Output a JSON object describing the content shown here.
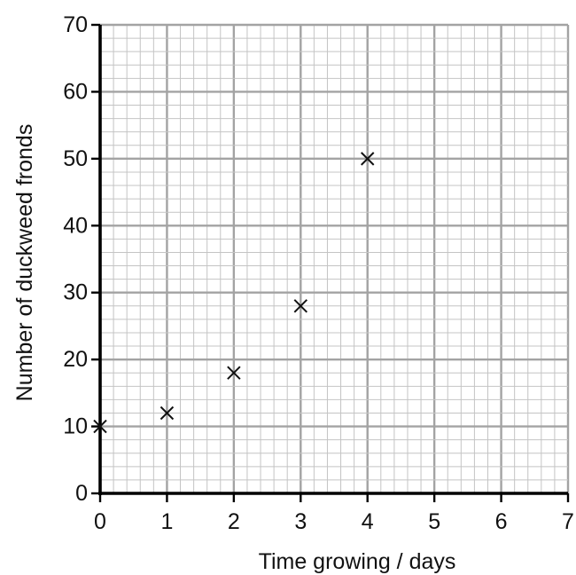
{
  "chart_data": {
    "type": "scatter",
    "title": "",
    "xlabel": "Time growing / days",
    "ylabel": "Number of duckweed fronds",
    "xlim": [
      0,
      7
    ],
    "ylim": [
      0,
      70
    ],
    "x_ticks": [
      "0",
      "1",
      "2",
      "3",
      "4",
      "5",
      "6",
      "7"
    ],
    "y_ticks": [
      "0",
      "10",
      "20",
      "30",
      "40",
      "50",
      "60",
      "70"
    ],
    "grid": true,
    "marker": "cross",
    "series": [
      {
        "x": [
          0,
          1,
          2,
          3,
          4
        ],
        "y": [
          10,
          12,
          18,
          28,
          50
        ]
      }
    ]
  }
}
